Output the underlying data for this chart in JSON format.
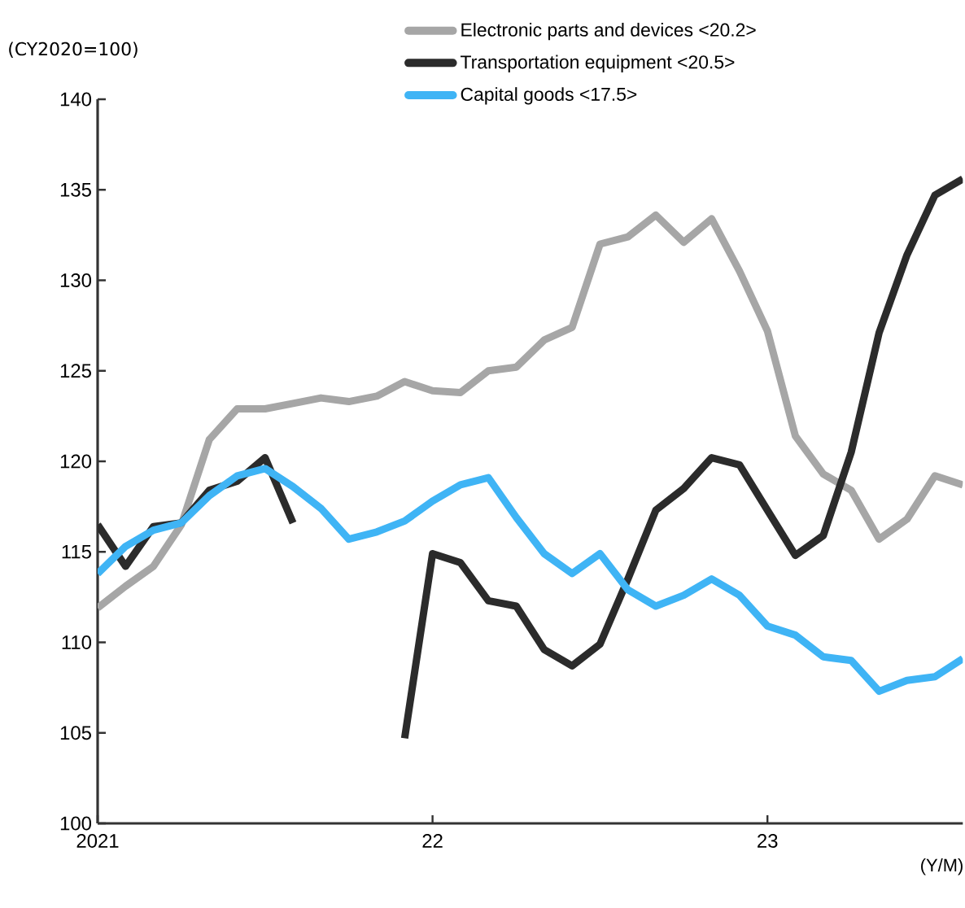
{
  "chart_data": {
    "type": "line",
    "ylabel": "(CY2020=100)",
    "xlabel": "(Y/M)",
    "x": [
      "2021-01",
      "2021-02",
      "2021-03",
      "2021-04",
      "2021-05",
      "2021-06",
      "2021-07",
      "2021-08",
      "2021-09",
      "2021-10",
      "2021-11",
      "2021-12",
      "2022-01",
      "2022-02",
      "2022-03",
      "2022-04",
      "2022-05",
      "2022-06",
      "2022-07",
      "2022-08",
      "2022-09",
      "2022-10",
      "2022-11",
      "2022-12",
      "2023-01",
      "2023-02",
      "2023-03",
      "2023-04",
      "2023-05",
      "2023-06",
      "2023-07",
      "2023-08"
    ],
    "series": [
      {
        "name": "Electronic parts and devices <20.2>",
        "color": "#a6a6a6",
        "values": [
          111.9,
          113.1,
          114.2,
          116.5,
          121.2,
          122.9,
          122.9,
          123.2,
          123.5,
          123.3,
          123.6,
          124.4,
          123.9,
          123.8,
          125.0,
          125.2,
          126.7,
          127.4,
          132.0,
          132.4,
          133.6,
          132.1,
          133.4,
          130.5,
          127.2,
          121.4,
          119.3,
          118.4,
          115.7,
          116.8,
          119.2,
          118.7
        ]
      },
      {
        "name": "Transportation equipment <20.5>",
        "color": "#2b2b2b",
        "values": [
          116.5,
          114.2,
          116.4,
          116.6,
          118.4,
          118.9,
          120.2,
          116.6,
          null,
          null,
          null,
          104.7,
          114.9,
          114.4,
          112.3,
          112.0,
          109.6,
          108.7,
          109.9,
          113.5,
          117.3,
          118.5,
          120.2,
          119.8,
          117.3,
          114.8,
          115.9,
          120.5,
          127.1,
          131.4,
          134.7,
          135.6
        ]
      },
      {
        "name": "Capital goods <17.5>",
        "color": "#3fb4f5",
        "values": [
          113.8,
          115.3,
          116.2,
          116.6,
          118.1,
          119.2,
          119.6,
          118.6,
          117.4,
          115.7,
          116.1,
          116.7,
          117.8,
          118.7,
          119.1,
          116.9,
          114.9,
          113.8,
          114.9,
          112.9,
          112.0,
          112.6,
          113.5,
          112.6,
          110.9,
          110.4,
          109.2,
          109.0,
          107.3,
          107.9,
          108.1,
          109.1
        ]
      }
    ],
    "xlim": [
      "2021-01",
      "2023-08"
    ],
    "xticks": [
      {
        "value": "2021-01",
        "label": "2021"
      },
      {
        "value": "2022-01",
        "label": "22"
      },
      {
        "value": "2023-01",
        "label": "23"
      }
    ],
    "ylim": [
      100,
      140
    ],
    "yticks": [
      100,
      105,
      110,
      115,
      120,
      125,
      130,
      135,
      140
    ],
    "legend": "top",
    "marker": "none",
    "line_style": "solid",
    "grid": false
  }
}
